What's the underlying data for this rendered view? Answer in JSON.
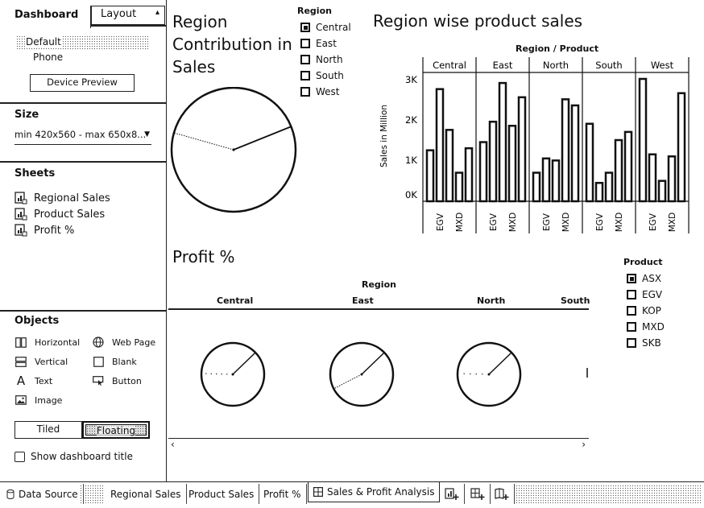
{
  "left_panel": {
    "tabs": {
      "dashboard": "Dashboard",
      "layout": "Layout"
    },
    "device": {
      "default_label": "Default",
      "phone_label": "Phone",
      "preview_button": "Device Preview"
    },
    "size": {
      "title": "Size",
      "value": "min 420x560 - max 650x8..."
    },
    "sheets": {
      "title": "Sheets",
      "items": [
        "Regional Sales",
        "Product Sales",
        "Profit %"
      ]
    },
    "objects": {
      "title": "Objects",
      "items": {
        "horizontal": "Horizontal",
        "web_page": "Web Page",
        "vertical": "Vertical",
        "blank": "Blank",
        "text": "Text",
        "button": "Button",
        "image": "Image"
      },
      "tiled": "Tiled",
      "floating": "Floating",
      "show_title": "Show dashboard title"
    }
  },
  "dashboard": {
    "region_contribution": {
      "title_line1": "Region",
      "title_line2": "Contribution in",
      "title_line3": "Sales"
    },
    "region_legend": {
      "title": "Region",
      "items": [
        "Central",
        "East",
        "North",
        "South",
        "West"
      ]
    },
    "region_product_chart": {
      "title": "Region wise product sales",
      "header": "Region / Product",
      "ylabel": "Sales in Million",
      "yticks": [
        "3K",
        "2K",
        "1K",
        "0K"
      ]
    },
    "profit": {
      "title": "Profit %",
      "header": "Region",
      "columns": [
        "Central",
        "East",
        "North",
        "South"
      ]
    },
    "product_legend": {
      "title": "Product",
      "items": [
        "ASX",
        "EGV",
        "KOP",
        "MXD",
        "SKB"
      ]
    }
  },
  "chart_data": {
    "type": "bar",
    "title": "Region wise product sales",
    "xlabel": "Region / Product",
    "ylabel": "Sales in Million",
    "ylim": [
      0,
      3000
    ],
    "groups": [
      "Central",
      "East",
      "North",
      "South",
      "West"
    ],
    "x_tick_labels": [
      "EGV",
      "MXD"
    ],
    "series": [
      {
        "name": "Central",
        "values": [
          1250,
          2750,
          1750,
          700,
          1300
        ]
      },
      {
        "name": "East",
        "values": [
          1450,
          1950,
          2900,
          1850,
          2550
        ]
      },
      {
        "name": "North",
        "values": [
          700,
          1050,
          1000,
          2500,
          2350
        ]
      },
      {
        "name": "South",
        "values": [
          1900,
          450,
          700,
          1500,
          1700
        ]
      },
      {
        "name": "West",
        "values": [
          3000,
          1150,
          500,
          1100,
          2650
        ]
      }
    ]
  },
  "bottom_tabs": {
    "data_source": "Data Source",
    "regional_sales": "Regional Sales",
    "product_sales": "Product Sales",
    "profit": "Profit %",
    "sales_profit": "Sales & Profit Analysis"
  }
}
